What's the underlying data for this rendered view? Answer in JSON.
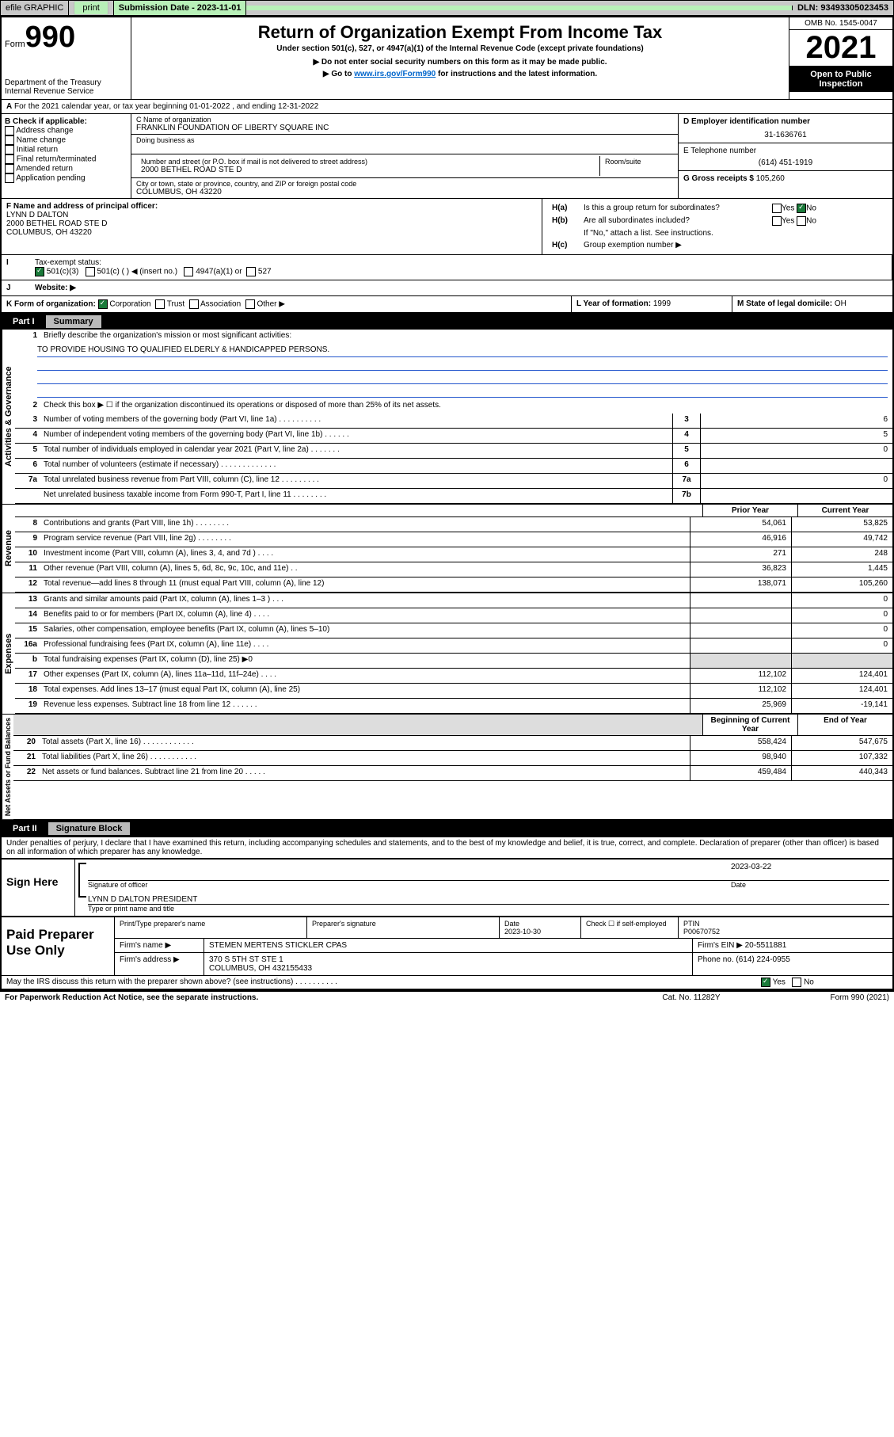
{
  "top_bar": {
    "efile": "efile GRAPHIC",
    "print": "print",
    "sub_label": "Submission Date - 2023-11-01",
    "dln": "DLN: 93493305023453"
  },
  "header": {
    "form_small": "Form",
    "form_num": "990",
    "title": "Return of Organization Exempt From Income Tax",
    "subtitle": "Under section 501(c), 527, or 4947(a)(1) of the Internal Revenue Code (except private foundations)",
    "note1": "▶ Do not enter social security numbers on this form as it may be made public.",
    "note2_pre": "▶ Go to ",
    "note2_link": "www.irs.gov/Form990",
    "note2_post": " for instructions and the latest information.",
    "dept": "Department of the Treasury",
    "irs": "Internal Revenue Service",
    "omb": "OMB No. 1545-0047",
    "year": "2021",
    "open": "Open to Public Inspection"
  },
  "line_a": "For the 2021 calendar year, or tax year beginning 01-01-2022    , and ending 12-31-2022",
  "section_b": {
    "label": "B Check if applicable:",
    "opts": [
      "Address change",
      "Name change",
      "Initial return",
      "Final return/terminated",
      "Amended return",
      "Application pending"
    ]
  },
  "org": {
    "name_label": "C Name of organization",
    "name": "FRANKLIN FOUNDATION OF LIBERTY SQUARE INC",
    "dba_label": "Doing business as",
    "addr_label": "Number and street (or P.O. box if mail is not delivered to street address)",
    "room_label": "Room/suite",
    "addr": "2000 BETHEL ROAD STE D",
    "city_label": "City or town, state or province, country, and ZIP or foreign postal code",
    "city": "COLUMBUS, OH  43220"
  },
  "right": {
    "ein_label": "D Employer identification number",
    "ein": "31-1636761",
    "tel_label": "E Telephone number",
    "tel": "(614) 451-1919",
    "gross_label": "G Gross receipts $",
    "gross": "105,260"
  },
  "officer": {
    "label": "F  Name and address of principal officer:",
    "name": "LYNN D DALTON",
    "addr1": "2000 BETHEL ROAD STE D",
    "addr2": "COLUMBUS, OH  43220"
  },
  "ha": {
    "a_label": "H(a)",
    "a_text": "Is this a group return for subordinates?",
    "b_label": "H(b)",
    "b_text": "Are all subordinates included?",
    "b_note": "If \"No,\" attach a list. See instructions.",
    "c_label": "H(c)",
    "c_text": "Group exemption number ▶",
    "yes": "Yes",
    "no": "No"
  },
  "tax_status": {
    "label": "Tax-exempt status:",
    "opt1": "501(c)(3)",
    "opt2": "501(c) (   ) ◀ (insert no.)",
    "opt3": "4947(a)(1) or",
    "opt4": "527"
  },
  "website": {
    "label": "Website: ▶"
  },
  "K": {
    "label": "K Form of organization:",
    "corp": "Corporation",
    "trust": "Trust",
    "assoc": "Association",
    "other": "Other ▶"
  },
  "L": {
    "label": "L Year of formation:",
    "val": "1999"
  },
  "M": {
    "label": "M State of legal domicile:",
    "val": "OH"
  },
  "part1": {
    "num": "Part I",
    "title": "Summary",
    "line1_label": "1",
    "line1_desc": "Briefly describe the organization's mission or most significant activities:",
    "mission": "TO PROVIDE HOUSING TO QUALIFIED ELDERLY & HANDICAPPED PERSONS.",
    "line2": "Check this box ▶ ☐  if the organization discontinued its operations or disposed of more than 25% of its net assets.",
    "rows_ag": [
      {
        "n": "3",
        "d": "Number of voting members of the governing body (Part VI, line 1a)   .   .   .   .   .   .   .   .   .   .",
        "box": "3",
        "v": "6"
      },
      {
        "n": "4",
        "d": "Number of independent voting members of the governing body (Part VI, line 1b)   .   .   .   .   .   .",
        "box": "4",
        "v": "5"
      },
      {
        "n": "5",
        "d": "Total number of individuals employed in calendar year 2021 (Part V, line 2a)   .   .   .   .   .   .   .",
        "box": "5",
        "v": "0"
      },
      {
        "n": "6",
        "d": "Total number of volunteers (estimate if necessary)   .   .   .   .   .   .   .   .   .   .   .   .   .",
        "box": "6",
        "v": ""
      },
      {
        "n": "7a",
        "d": "Total unrelated business revenue from Part VIII, column (C), line 12   .   .   .   .   .   .   .   .   .",
        "box": "7a",
        "v": "0"
      },
      {
        "n": "",
        "d": "Net unrelated business taxable income from Form 990-T, Part I, line 11   .   .   .   .   .   .   .   .",
        "box": "7b",
        "v": ""
      }
    ],
    "col_prior": "Prior Year",
    "col_current": "Current Year",
    "rev_rows": [
      {
        "n": "8",
        "d": "Contributions and grants (Part VIII, line 1h)   .   .   .   .   .   .   .   .",
        "p": "54,061",
        "c": "53,825"
      },
      {
        "n": "9",
        "d": "Program service revenue (Part VIII, line 2g)   .   .   .   .   .   .   .   .",
        "p": "46,916",
        "c": "49,742"
      },
      {
        "n": "10",
        "d": "Investment income (Part VIII, column (A), lines 3, 4, and 7d )   .   .   .   .",
        "p": "271",
        "c": "248"
      },
      {
        "n": "11",
        "d": "Other revenue (Part VIII, column (A), lines 5, 6d, 8c, 9c, 10c, and 11e)   .   .",
        "p": "36,823",
        "c": "1,445"
      },
      {
        "n": "12",
        "d": "Total revenue—add lines 8 through 11 (must equal Part VIII, column (A), line 12)",
        "p": "138,071",
        "c": "105,260"
      }
    ],
    "exp_rows": [
      {
        "n": "13",
        "d": "Grants and similar amounts paid (Part IX, column (A), lines 1–3 )   .   .   .",
        "p": "",
        "c": "0"
      },
      {
        "n": "14",
        "d": "Benefits paid to or for members (Part IX, column (A), line 4)   .   .   .   .",
        "p": "",
        "c": "0"
      },
      {
        "n": "15",
        "d": "Salaries, other compensation, employee benefits (Part IX, column (A), lines 5–10)",
        "p": "",
        "c": "0"
      },
      {
        "n": "16a",
        "d": "Professional fundraising fees (Part IX, column (A), line 11e)   .   .   .   .",
        "p": "",
        "c": "0"
      },
      {
        "n": "b",
        "d": "Total fundraising expenses (Part IX, column (D), line 25) ▶0",
        "p": "shade",
        "c": "shade"
      },
      {
        "n": "17",
        "d": "Other expenses (Part IX, column (A), lines 11a–11d, 11f–24e)   .   .   .   .",
        "p": "112,102",
        "c": "124,401"
      },
      {
        "n": "18",
        "d": "Total expenses. Add lines 13–17 (must equal Part IX, column (A), line 25)",
        "p": "112,102",
        "c": "124,401"
      },
      {
        "n": "19",
        "d": "Revenue less expenses. Subtract line 18 from line 12   .   .   .   .   .   .",
        "p": "25,969",
        "c": "-19,141"
      }
    ],
    "col_begin": "Beginning of Current Year",
    "col_end": "End of Year",
    "net_rows": [
      {
        "n": "20",
        "d": "Total assets (Part X, line 16)   .   .   .   .   .   .   .   .   .   .   .   .",
        "p": "558,424",
        "c": "547,675"
      },
      {
        "n": "21",
        "d": "Total liabilities (Part X, line 26)   .   .   .   .   .   .   .   .   .   .   .",
        "p": "98,940",
        "c": "107,332"
      },
      {
        "n": "22",
        "d": "Net assets or fund balances. Subtract line 21 from line 20   .   .   .   .   .",
        "p": "459,484",
        "c": "440,343"
      }
    ]
  },
  "vlabels": {
    "ag": "Activities & Governance",
    "rev": "Revenue",
    "exp": "Expenses",
    "net": "Net Assets or Fund Balances"
  },
  "part2": {
    "num": "Part II",
    "title": "Signature Block"
  },
  "penalties": "Under penalties of perjury, I declare that I have examined this return, including accompanying schedules and statements, and to the best of my knowledge and belief, it is true, correct, and complete. Declaration of preparer (other than officer) is based on all information of which preparer has any knowledge.",
  "sign": {
    "here": "Sign Here",
    "sig_officer": "Signature of officer",
    "date": "Date",
    "date_val": "2023-03-22",
    "name": "LYNN D DALTON  PRESIDENT",
    "name_label": "Type or print name and title"
  },
  "paid": {
    "title": "Paid Preparer Use Only",
    "h1": "Print/Type preparer's name",
    "h2": "Preparer's signature",
    "h3": "Date",
    "h4": "Check ☐ if self-employed",
    "h5": "PTIN",
    "date": "2023-10-30",
    "ptin": "P00670752",
    "firm_label": "Firm's name    ▶",
    "firm": "STEMEN MERTENS STICKLER CPAS",
    "ein_label": "Firm's EIN ▶",
    "ein": "20-5511881",
    "addr_label": "Firm's address ▶",
    "addr1": "370 S 5TH ST STE 1",
    "addr2": "COLUMBUS, OH  432155433",
    "phone_label": "Phone no.",
    "phone": "(614) 224-0955"
  },
  "bottom": {
    "q": "May the IRS discuss this return with the preparer shown above? (see instructions)   .   .   .   .   .   .   .   .   .   .",
    "yes": "Yes",
    "no": "No",
    "pra": "For Paperwork Reduction Act Notice, see the separate instructions.",
    "cat": "Cat. No. 11282Y",
    "form": "Form 990 (2021)"
  }
}
